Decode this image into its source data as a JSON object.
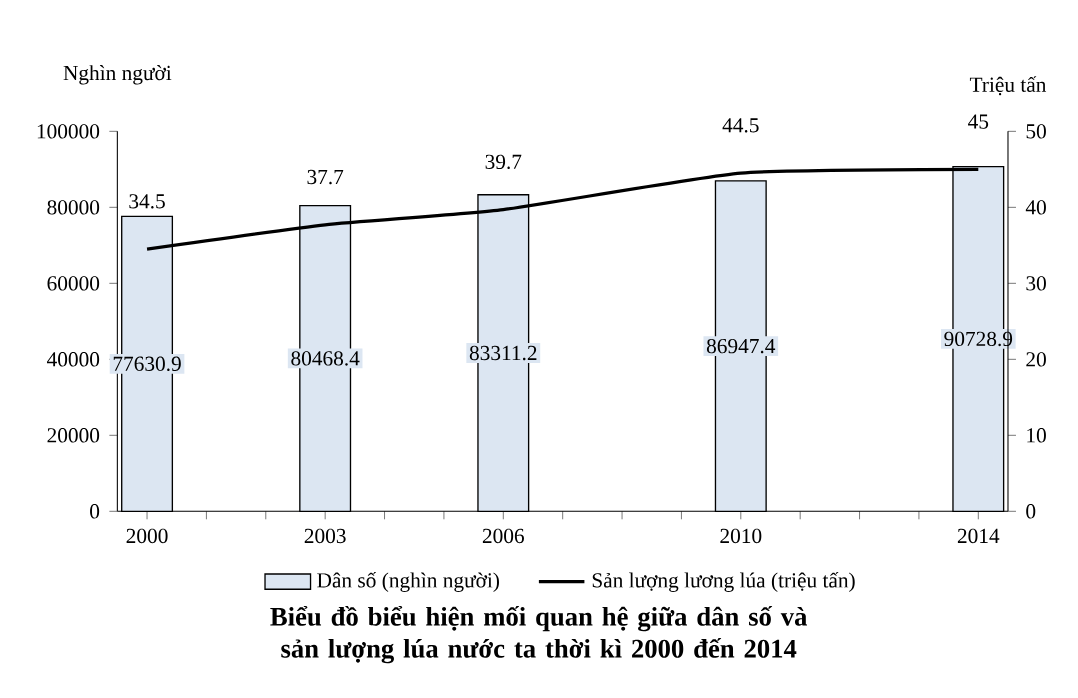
{
  "chart_data": {
    "type": "bar",
    "title": "Biểu đồ biểu hiện mối quan hệ giữa dân số và sản lượng lúa nước ta thời kì 2000 đến 2014",
    "x": [
      2000,
      2003,
      2006,
      2010,
      2014
    ],
    "xlim": [
      1999.5,
      2014.5
    ],
    "xticks": [
      2000,
      {
        "value": 2001,
        "label": null
      },
      {
        "value": 2002,
        "label": null
      },
      2003,
      {
        "value": 2004,
        "label": null
      },
      {
        "value": 2005,
        "label": null
      },
      2006,
      {
        "value": 2007,
        "label": null
      },
      {
        "value": 2008,
        "label": null
      },
      {
        "value": 2009,
        "label": null
      },
      2010,
      {
        "value": 2011,
        "label": null
      },
      {
        "value": 2012,
        "label": null
      },
      {
        "value": 2013,
        "label": null
      },
      2014
    ],
    "ylabel": "Nghìn người",
    "y2label": "Triệu tấn",
    "ylim": [
      0,
      100000
    ],
    "yticks": [
      0,
      20000,
      40000,
      60000,
      80000,
      100000
    ],
    "y2lim": [
      0,
      50
    ],
    "y2ticks": [
      0,
      10,
      20,
      30,
      40,
      50
    ],
    "series": [
      {
        "name": "Dân số (nghìn người)",
        "type": "bar",
        "color": "#dce6f2",
        "values": [
          77630.9,
          80468.4,
          83311.2,
          86947.4,
          90728.9
        ]
      },
      {
        "name": "Sản lượng lương  lúa (triệu tấn)",
        "type": "line",
        "axis": "y2",
        "color": "#000000",
        "values": [
          34.5,
          37.7,
          39.7,
          44.5,
          45
        ]
      }
    ],
    "data_labels": true,
    "legend": "bottom"
  }
}
